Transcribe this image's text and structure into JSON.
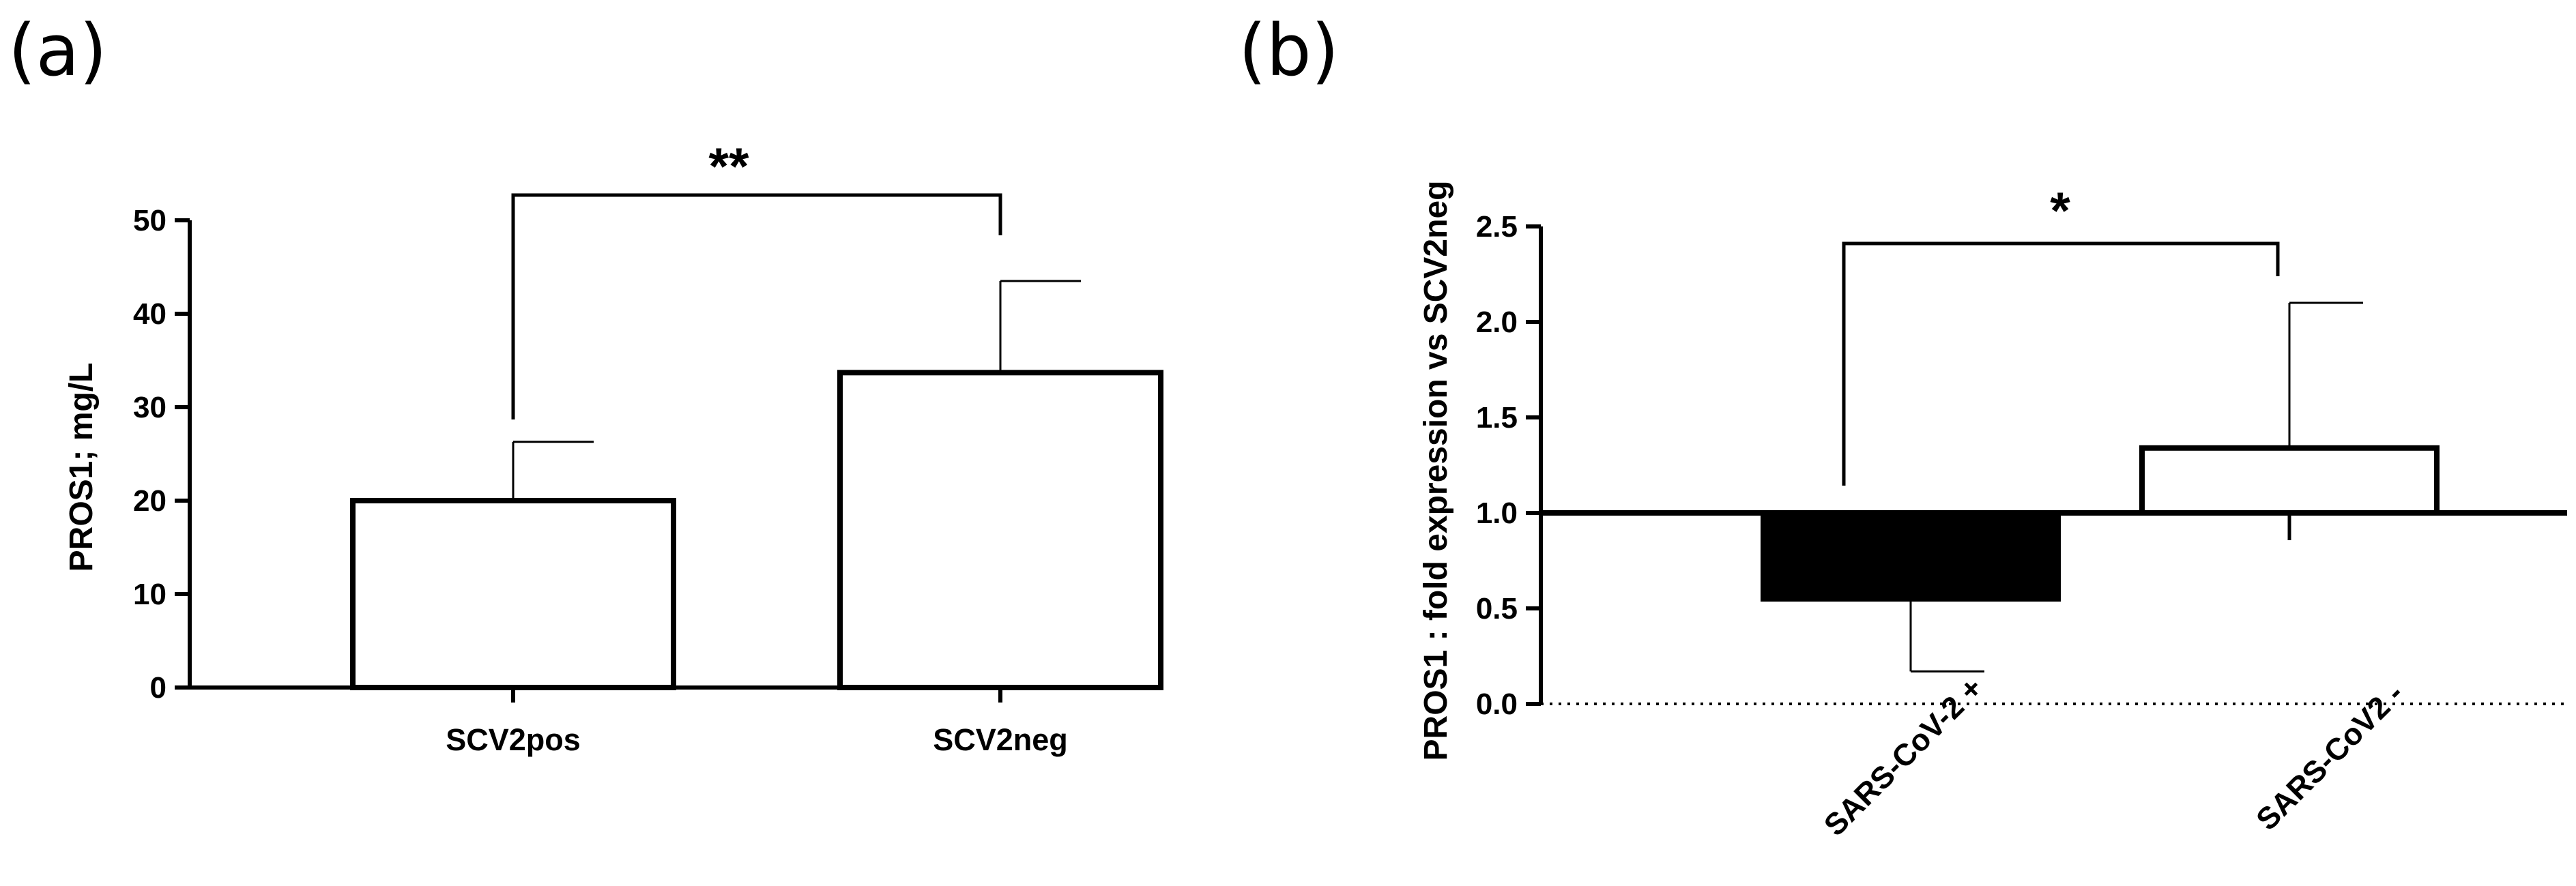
{
  "chart_data": [
    {
      "panel": "(a)",
      "type": "bar",
      "categories": [
        "SCV2pos",
        "SCV2neg"
      ],
      "values": [
        20,
        33.7
      ],
      "error_upper": [
        26.3,
        43.5
      ],
      "ylabel": "PROS1; mg/L",
      "ylim": [
        0,
        50
      ],
      "yticks": [
        "0",
        "10",
        "20",
        "30",
        "40",
        "50"
      ],
      "bar_fill": [
        "#ffffff",
        "#ffffff"
      ],
      "significance": "**"
    },
    {
      "panel": "(b)",
      "type": "bar",
      "categories": [
        "SARS-CoV-2 +",
        "SARS-CoV2 -"
      ],
      "values": [
        0.55,
        1.34
      ],
      "baseline": 1.0,
      "error_ends": [
        0.17,
        2.1
      ],
      "ylabel": "PROS1 : fold expression vs SCV2neg",
      "ylim": [
        0,
        2.5
      ],
      "yticks": [
        "0.0",
        "0.5",
        "1.0",
        "1.5",
        "2.0",
        "2.5"
      ],
      "bar_fill": [
        "#000000",
        "#ffffff"
      ],
      "reference_line": 0,
      "significance": "*"
    }
  ]
}
